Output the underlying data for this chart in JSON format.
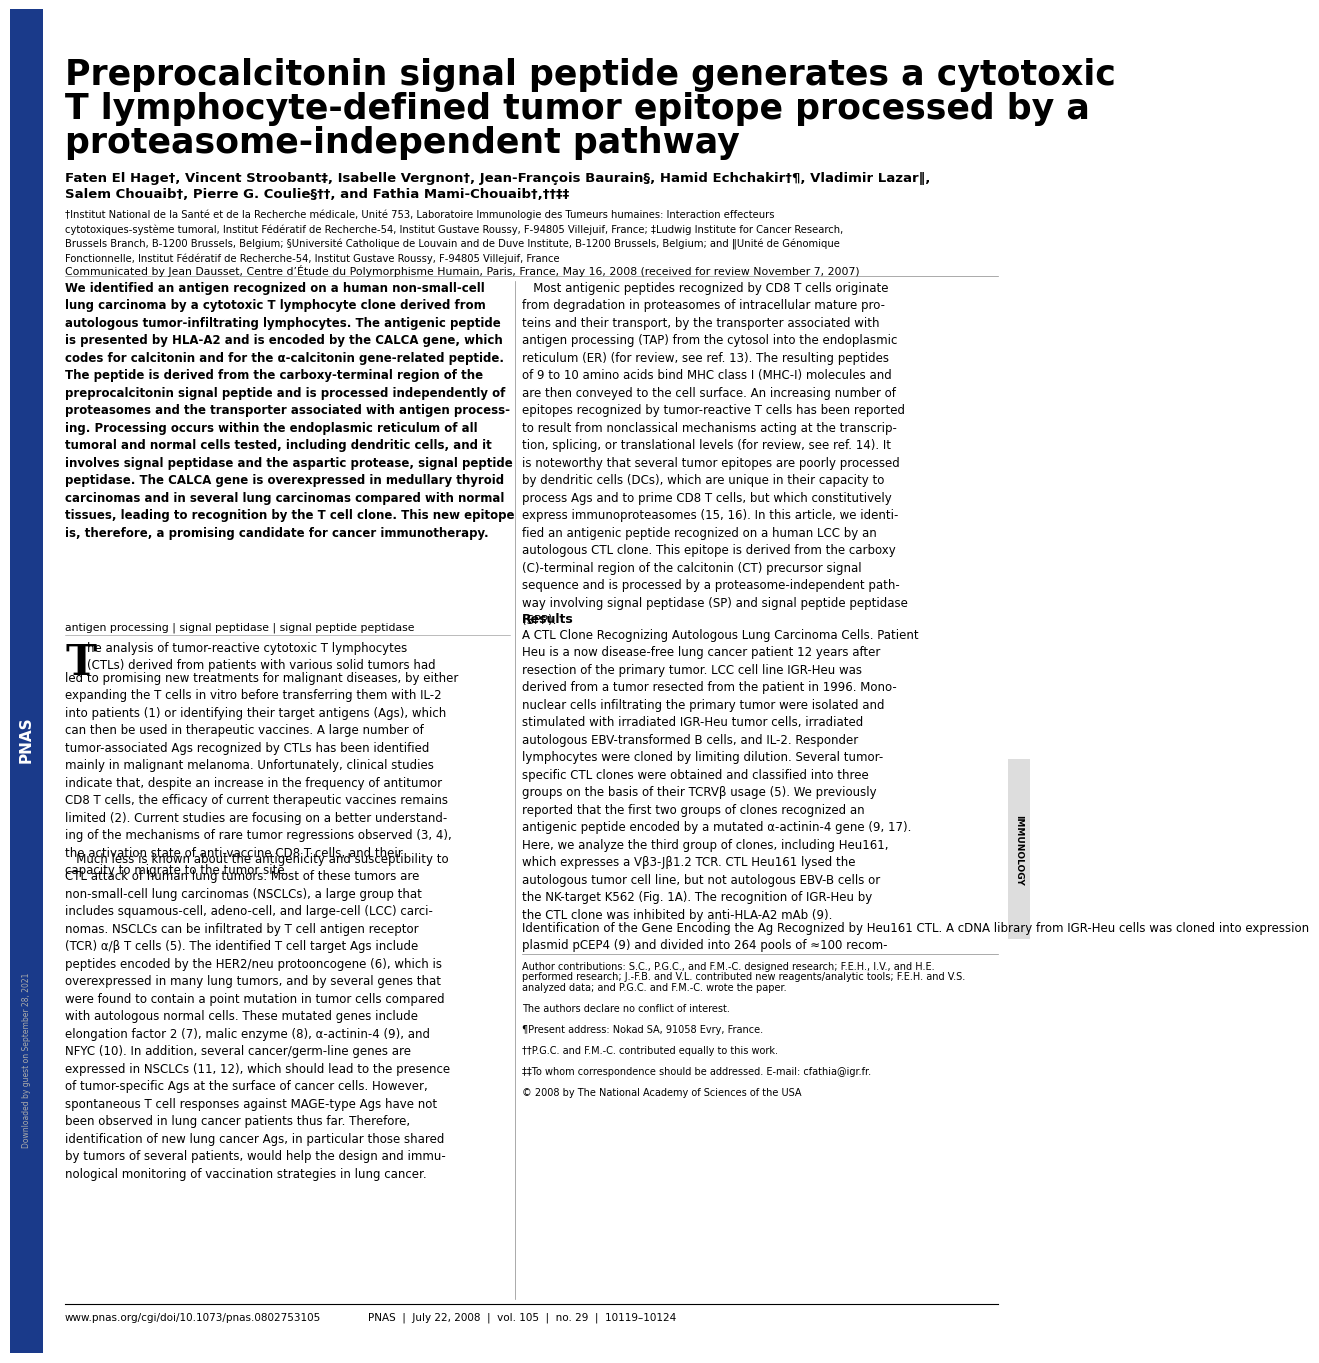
{
  "bg_color": "#ffffff",
  "sidebar_color": "#1a3a8a",
  "title_line1": "Preprocalcitonin signal peptide generates a cytotoxic",
  "title_line2": "T lymphocyte-defined tumor epitope processed by a",
  "title_line3": "proteasome-independent pathway",
  "authors_line1": "Faten El Hage†, Vincent Stroobant‡, Isabelle Vergnon†, Jean-François Baurain§, Hamid Echchakir†¶, Vladimir Lazar‖,",
  "authors_line2": "Salem Chouaib†, Pierre G. Coulie§††, and Fathia Mami-Chouaib†,††‡‡",
  "affiliations": "†Institut National de la Santé et de la Recherche médicale, Unité 753, Laboratoire Immunologie des Tumeurs humaines: Interaction effecteurs\ncytotoxiques-système tumoral, Institut Fédératif de Recherche-54, Institut Gustave Roussy, F-94805 Villejuif, France; ‡Ludwig Institute for Cancer Research,\nBrussels Branch, B-1200 Brussels, Belgium; §Université Catholique de Louvain and de Duve Institute, B-1200 Brussels, Belgium; and ‖Unité de Génomique\nFonctionnelle, Institut Fédératif de Recherche-54, Institut Gustave Roussy, F-94805 Villejuif, France",
  "communicated": "Communicated by Jean Dausset, Centre d’Étude du Polymorphisme Humain, Paris, France, May 16, 2008 (received for review November 7, 2007)",
  "abstract_bold": "We identified an antigen recognized on a human non-small-cell\nlung carcinoma by a cytotoxic T lymphocyte clone derived from\nautologous tumor-infiltrating lymphocytes. The antigenic peptide\nis presented by HLA-A2 and is encoded by the CALCA gene, which\ncodes for calcitonin and for the α-calcitonin gene-related peptide.\nThe peptide is derived from the carboxy-terminal region of the\npreprocalcitonin signal peptide and is processed independently of\nproteasomes and the transporter associated with antigen process-\ning. Processing occurs within the endoplasmic reticulum of all\ntumoral and normal cells tested, including dendritic cells, and it\ninvolves signal peptidase and the aspartic protease, signal peptide\npeptidase. The CALCA gene is overexpressed in medullary thyroid\ncarcinomas and in several lung carcinomas compared with normal\ntissues, leading to recognition by the T cell clone. This new epitope\nis, therefore, a promising candidate for cancer immunotherapy.",
  "keywords": "antigen processing | signal peptidase | signal peptide peptidase",
  "left_para1": "he analysis of tumor-reactive cytotoxic T lymphocytes\n(CTLs) derived from patients with various solid tumors had\nled to promising new treatments for malignant diseases, by either\nexpanding the T cells in vitro before transferring them with IL-2\ninto patients (1) or identifying their target antigens (Ags), which\ncan then be used in therapeutic vaccines. A large number of\ntumor-associated Ags recognized by CTLs has been identified\nmainly in malignant melanoma. Unfortunately, clinical studies\nindicate that, despite an increase in the frequency of antitumor\nCD8 T cells, the efficacy of current therapeutic vaccines remains\nlimited (2). Current studies are focusing on a better understand-\ning of the mechanisms of rare tumor regressions observed (3, 4),\nthe activation state of anti-vaccine CD8 T cells, and their\ncapacity to migrate to the tumor site.",
  "left_para2": "   Much less is known about the antigenicity and susceptibility to\nCTL attack of human lung tumors. Most of these tumors are\nnon-small-cell lung carcinomas (NSCLCs), a large group that\nincludes squamous-cell, adeno-cell, and large-cell (LCC) carci-\nnomas. NSCLCs can be infiltrated by T cell antigen receptor\n(TCR) α/β T cells (5). The identified T cell target Ags include\npeptides encoded by the HER2/neu protooncogene (6), which is\noverexpressed in many lung tumors, and by several genes that\nwere found to contain a point mutation in tumor cells compared\nwith autologous normal cells. These mutated genes include\nelongation factor 2 (7), malic enzyme (8), α-actinin-4 (9), and\nNFYC (10). In addition, several cancer/germ-line genes are\nexpressed in NSCLCs (11, 12), which should lead to the presence\nof tumor-specific Ags at the surface of cancer cells. However,\nspontaneous T cell responses against MAGE-type Ags have not\nbeen observed in lung cancer patients thus far. Therefore,\nidentification of new lung cancer Ags, in particular those shared\nby tumors of several patients, would help the design and immu-\nnological monitoring of vaccination strategies in lung cancer.",
  "right_intro": "   Most antigenic peptides recognized by CD8 T cells originate\nfrom degradation in proteasomes of intracellular mature pro-\nteins and their transport, by the transporter associated with\nantigen processing (TAP) from the cytosol into the endoplasmic\nreticulum (ER) (for review, see ref. 13). The resulting peptides\nof 9 to 10 amino acids bind MHC class I (MHC-I) molecules and\nare then conveyed to the cell surface. An increasing number of\nepitopes recognized by tumor-reactive T cells has been reported\nto result from nonclassical mechanisms acting at the transcrip-\ntion, splicing, or translational levels (for review, see ref. 14). It\nis noteworthy that several tumor epitopes are poorly processed\nby dendritic cells (DCs), which are unique in their capacity to\nprocess Ags and to prime CD8 T cells, but which constitutively\nexpress immunoproteasomes (15, 16). In this article, we identi-\nfied an antigenic peptide recognized on a human LCC by an\nautologous CTL clone. This epitope is derived from the carboxy\n(C)-terminal region of the calcitonin (CT) precursor signal\nsequence and is processed by a proteasome-independent path-\nway involving signal peptidase (SP) and signal peptide peptidase\n(SPP).",
  "results_heading": "Results",
  "results_sub": "A CTL Clone Recognizing Autologous Lung Carcinoma Cells.",
  "results_body": " Patient\nHeu is a now disease-free lung cancer patient 12 years after\nresection of the primary tumor. LCC cell line IGR-Heu was\nderived from a tumor resected from the patient in 1996. Mono-\nnuclear cells infiltrating the primary tumor were isolated and\nstimulated with irradiated IGR-Heu tumor cells, irradiated\nautologous EBV-transformed B cells, and IL-2. Responder\nlymphocytes were cloned by limiting dilution. Several tumor-\nspecific CTL clones were obtained and classified into three\ngroups on the basis of their TCRVβ usage (5). We previously\nreported that the first two groups of clones recognized an\nantigenic peptide encoded by a mutated α-actinin-4 gene (9, 17).\nHere, we analyze the third group of clones, including Heu161,\nwhich expresses a Vβ3-Jβ1.2 TCR. CTL Heu161 lysed the\nautologous tumor cell line, but not autologous EBV-B cells or\nthe NK-target K562 (Fig. 1A). The recognition of IGR-Heu by\nthe CTL clone was inhibited by anti-HLA-A2 mAb (9).",
  "ident_sub": "Identification of the Gene Encoding the Ag Recognized by Heu161 CTL.",
  "ident_body": " A cDNA library from IGR-Heu cells was cloned into expression\nplasmid pCEP4 (9) and divided into 264 pools of ≈100 recom-",
  "footnotes_line1": "Author contributions: S.C., P.G.C., and F.M.-C. designed research; F.E.H., I.V., and H.E.",
  "footnotes_line2": "performed research; J.-F.B. and V.L. contributed new reagents/analytic tools; F.E.H. and V.S.",
  "footnotes_line3": "analyzed data; and P.G.C. and F.M.-C. wrote the paper.",
  "footnotes_line4": "The authors declare no conflict of interest.",
  "footnotes_line5": "¶Present address: Nokad SA, 91058 Evry, France.",
  "footnotes_line6": "††P.G.C. and F.M.-C. contributed equally to this work.",
  "footnotes_line7": "‡‡To whom correspondence should be addressed. E-mail: cfathia@igr.fr.",
  "footnotes_line8": "© 2008 by The National Academy of Sciences of the USA",
  "url": "www.pnas.org/cgi/doi/10.1073/pnas.0802753105",
  "journal_info": "PNAS  |  July 22, 2008  |  vol. 105  |  no. 29  |  10119–10124",
  "downloaded": "Downloaded by guest on September 28, 2021",
  "immunology": "IMMUNOLOGY"
}
